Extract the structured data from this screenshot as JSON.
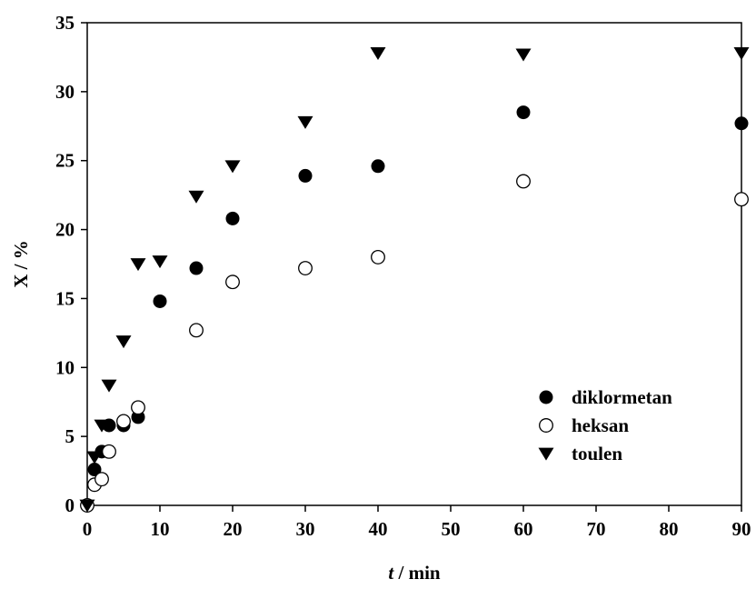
{
  "chart_data": {
    "type": "scatter",
    "xlabel_italic": "t",
    "xlabel_rest": " / min",
    "ylabel": "X / %",
    "xlim": [
      0,
      90
    ],
    "ylim": [
      0,
      35
    ],
    "xticks": [
      0,
      10,
      20,
      30,
      40,
      50,
      60,
      70,
      80,
      90
    ],
    "yticks": [
      0,
      5,
      10,
      15,
      20,
      25,
      30,
      35
    ],
    "grid": false,
    "legend_position": "bottom-right",
    "series": [
      {
        "name": "diklormetan",
        "marker": "filled-circle",
        "color": "#000000",
        "points": [
          [
            0,
            0
          ],
          [
            1,
            2.6
          ],
          [
            2,
            3.9
          ],
          [
            3,
            5.8
          ],
          [
            5,
            5.8
          ],
          [
            7,
            6.4
          ],
          [
            10,
            14.8
          ],
          [
            15,
            17.2
          ],
          [
            20,
            20.8
          ],
          [
            30,
            23.9
          ],
          [
            40,
            24.6
          ],
          [
            60,
            28.5
          ],
          [
            90,
            27.7
          ]
        ]
      },
      {
        "name": "heksan",
        "marker": "open-circle",
        "color": "#000000",
        "points": [
          [
            0,
            0
          ],
          [
            1,
            1.5
          ],
          [
            2,
            1.9
          ],
          [
            3,
            3.9
          ],
          [
            5,
            6.1
          ],
          [
            7,
            7.1
          ],
          [
            15,
            12.7
          ],
          [
            20,
            16.2
          ],
          [
            30,
            17.2
          ],
          [
            40,
            18.0
          ],
          [
            60,
            23.5
          ],
          [
            90,
            22.2
          ]
        ]
      },
      {
        "name": "toulen",
        "marker": "down-triangle",
        "color": "#000000",
        "points": [
          [
            0,
            0
          ],
          [
            1,
            3.5
          ],
          [
            2,
            5.8
          ],
          [
            3,
            8.7
          ],
          [
            5,
            11.9
          ],
          [
            7,
            17.5
          ],
          [
            10,
            17.7
          ],
          [
            15,
            22.4
          ],
          [
            20,
            24.6
          ],
          [
            30,
            27.8
          ],
          [
            40,
            32.8
          ],
          [
            60,
            32.7
          ],
          [
            90,
            32.8
          ]
        ]
      }
    ]
  }
}
